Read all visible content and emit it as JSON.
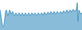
{
  "chart_data": {
    "type": "area",
    "values": [
      28,
      22,
      14,
      6,
      4,
      8,
      16,
      26,
      28,
      24,
      20,
      24,
      28,
      26,
      22,
      24,
      26,
      22,
      20,
      22,
      24,
      22,
      20,
      22,
      24,
      22,
      20,
      22,
      24,
      22,
      20,
      22,
      24,
      22,
      20,
      22,
      24,
      22,
      20,
      22,
      24,
      23,
      21,
      22,
      24,
      22,
      20,
      22,
      24,
      23,
      21,
      22,
      24,
      23,
      21,
      23,
      25,
      23,
      21,
      23,
      25,
      24,
      22,
      24,
      26,
      24,
      22,
      24,
      26,
      24,
      22,
      24,
      26,
      24,
      23,
      24,
      26,
      25,
      23,
      25,
      27,
      25,
      24,
      26,
      28,
      26,
      24,
      26,
      28,
      27,
      25,
      27,
      29,
      28,
      26,
      27,
      30,
      38,
      12,
      28,
      26,
      24,
      22,
      24
    ],
    "color": "#3a8fc0",
    "ylim": [
      0,
      42
    ],
    "grid": false,
    "tick_labels": false
  }
}
